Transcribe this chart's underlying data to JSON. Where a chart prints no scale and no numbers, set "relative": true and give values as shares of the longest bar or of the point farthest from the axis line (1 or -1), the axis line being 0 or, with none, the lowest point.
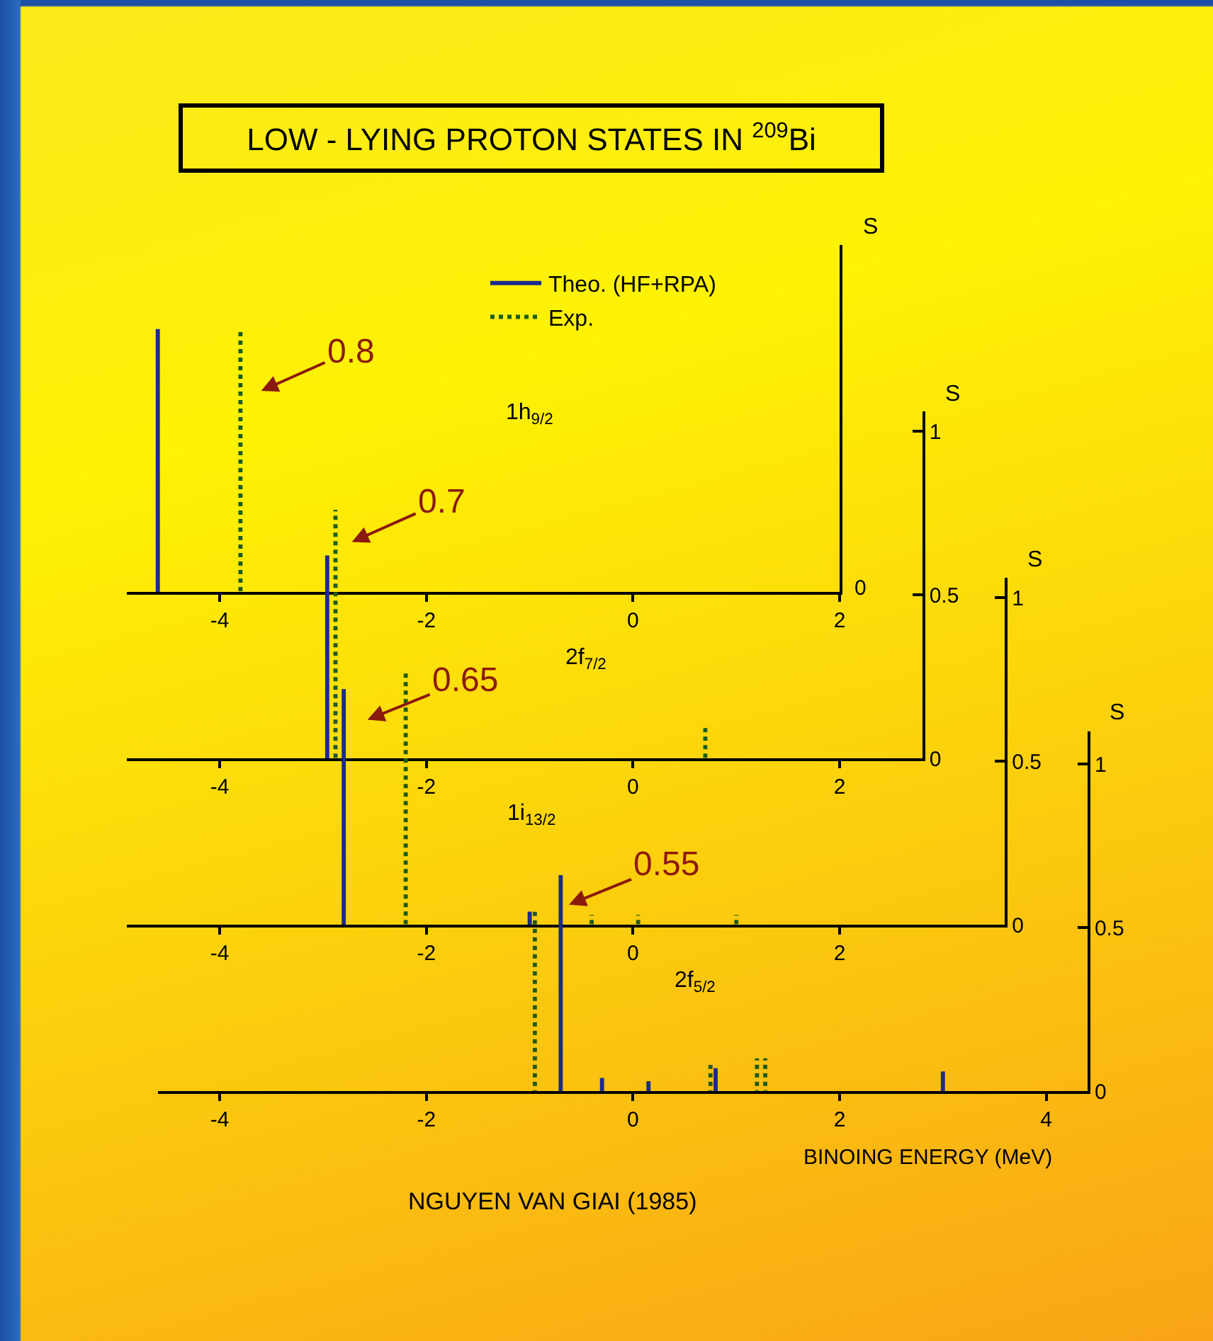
{
  "chart_data": [
    {
      "type": "bar",
      "relative": true,
      "title": "LOW - LYING PROTON STATES IN $^{209}$Bi",
      "subtitle": "1h$_{9/2}$",
      "ylabel": "S",
      "legend": "top",
      "xlim": [
        -4.9,
        2
      ],
      "xticks": [
        -4,
        -2,
        0,
        2
      ],
      "series": [
        {
          "name": "Theo. (HF+RPA)",
          "color": "#1c2a8c",
          "line_style": "solid",
          "x": [
            -4.6
          ],
          "values": [
            1
          ]
        },
        {
          "name": "Exp.",
          "color": "#1e5b1e",
          "line_style": "dotted",
          "x": [
            -3.8
          ],
          "values": [
            1
          ]
        }
      ],
      "annotations": [
        "0.8",
        "0"
      ]
    },
    {
      "type": "bar",
      "subtitle": "2f$_{7/2}$",
      "ylabel": "S",
      "xlim": [
        -4.9,
        2.8
      ],
      "xticks": [
        -4,
        -2,
        0,
        2
      ],
      "ylim": [
        0,
        1.06
      ],
      "yticks": [
        0,
        0.5,
        1
      ],
      "series": [
        {
          "color": "#1c2a8c",
          "line_style": "solid",
          "x": [
            -2.96
          ],
          "values": [
            0.62
          ]
        },
        {
          "color": "#1e5b1e",
          "line_style": "dotted",
          "x": [
            -2.88,
            0.7
          ],
          "values": [
            0.76,
            0.1
          ]
        }
      ],
      "annotations": [
        "0.7"
      ]
    },
    {
      "type": "bar",
      "subtitle": "1i$_{13/2}$",
      "ylabel": "S",
      "xlim": [
        -4.9,
        3.6
      ],
      "xticks": [
        -4,
        -2,
        0,
        2
      ],
      "ylim": [
        0,
        1.06
      ],
      "yticks": [
        0,
        0.5,
        1
      ],
      "series": [
        {
          "color": "#1c2a8c",
          "line_style": "solid",
          "x": [
            -2.8,
            -1.0
          ],
          "values": [
            0.72,
            0.04
          ]
        },
        {
          "color": "#1e5b1e",
          "line_style": "dotted",
          "x": [
            -2.2,
            -0.4,
            0.05,
            1.0
          ],
          "values": [
            0.77,
            0.03,
            0.03,
            0.03
          ]
        }
      ],
      "annotations": [
        "0.65"
      ]
    },
    {
      "type": "bar",
      "subtitle": "2f$_{5/2}$",
      "xlabel": "BINOING ENERGY (MeV)",
      "ylabel": "S",
      "xlim": [
        -4.6,
        4.4
      ],
      "xticks": [
        -4,
        -2,
        0,
        2,
        4
      ],
      "ylim": [
        0,
        1.1
      ],
      "yticks": [
        0,
        0.5,
        1
      ],
      "series": [
        {
          "color": "#1c2a8c",
          "line_style": "solid",
          "x": [
            -0.7,
            -0.3,
            0.15,
            0.8,
            3.0
          ],
          "values": [
            0.66,
            0.04,
            0.03,
            0.07,
            0.06
          ]
        },
        {
          "color": "#1e5b1e",
          "line_style": "dotted",
          "x": [
            -0.95,
            0.75,
            1.2,
            1.28
          ],
          "values": [
            0.56,
            0.08,
            0.1,
            0.1
          ]
        }
      ],
      "annotations": [
        {
          "text": "0.55",
          "x": -0.62,
          "y": 0.57
        },
        "NGUYEN VAN GIAI (1985)"
      ]
    }
  ]
}
